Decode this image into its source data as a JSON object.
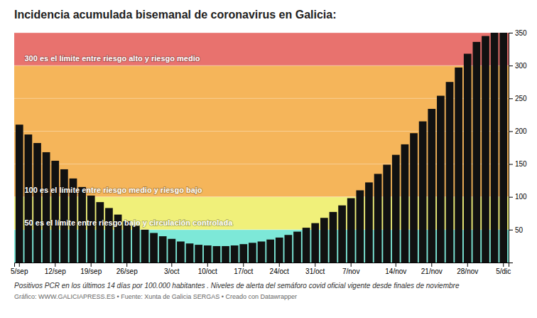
{
  "chart_data": {
    "type": "bar",
    "title": "Incidencia acumulada bisemanal de coronavirus en Galicia:",
    "subtitle": "Positivos PCR en los últimos 14 días por 100.000 habitantes . Niveles de alerta del semáforo covid oficial vigente desde finales de noviembre",
    "source": "Gráfico: WWW.GALICIAPRESS.ES • Fuente: Xunta de Galicia SERGAS • Creado con Datawrapper",
    "categories": [
      "5/sep",
      null,
      null,
      null,
      "12/sep",
      null,
      null,
      null,
      "19/sep",
      null,
      null,
      null,
      "26/sep",
      null,
      null,
      null,
      null,
      "3/oct",
      null,
      null,
      null,
      "10/oct",
      null,
      null,
      null,
      "17/oct",
      null,
      null,
      null,
      "24/oct",
      null,
      null,
      null,
      "31/oct",
      null,
      null,
      null,
      "7/nov",
      null,
      null,
      null,
      null,
      "14/nov",
      null,
      null,
      null,
      "21/nov",
      null,
      null,
      null,
      "28/nov",
      null,
      null,
      null,
      "5/dic"
    ],
    "values": [
      210,
      195,
      182,
      168,
      155,
      142,
      128,
      115,
      102,
      92,
      83,
      73,
      63,
      56,
      50,
      45,
      40,
      36,
      32,
      29,
      27,
      26,
      25,
      25,
      26,
      28,
      30,
      32,
      35,
      38,
      42,
      47,
      53,
      60,
      68,
      77,
      87,
      98,
      110,
      122,
      135,
      149,
      164,
      180,
      197,
      215,
      234,
      254,
      275,
      297,
      318,
      336,
      345,
      350,
      350
    ],
    "color": "#111111",
    "ylim": [
      0,
      350
    ],
    "yticks": [
      50,
      100,
      150,
      200,
      250,
      300,
      350
    ],
    "grid": true,
    "zones": [
      {
        "range": [
          0,
          50
        ],
        "color": "#7de8d8"
      },
      {
        "range": [
          50,
          100
        ],
        "color": "#f0f07a",
        "label": "50 es el límite entre riesgo bajo y circulación controlada"
      },
      {
        "range": [
          100,
          300
        ],
        "color": "#f5b55a",
        "label": "100 es el límite entre riesgo medio y riesgo bajo"
      },
      {
        "range": [
          300,
          350
        ],
        "color": "#e8726e",
        "label": "300 es el límite entre riesgo alto y riesgo medio"
      }
    ]
  }
}
